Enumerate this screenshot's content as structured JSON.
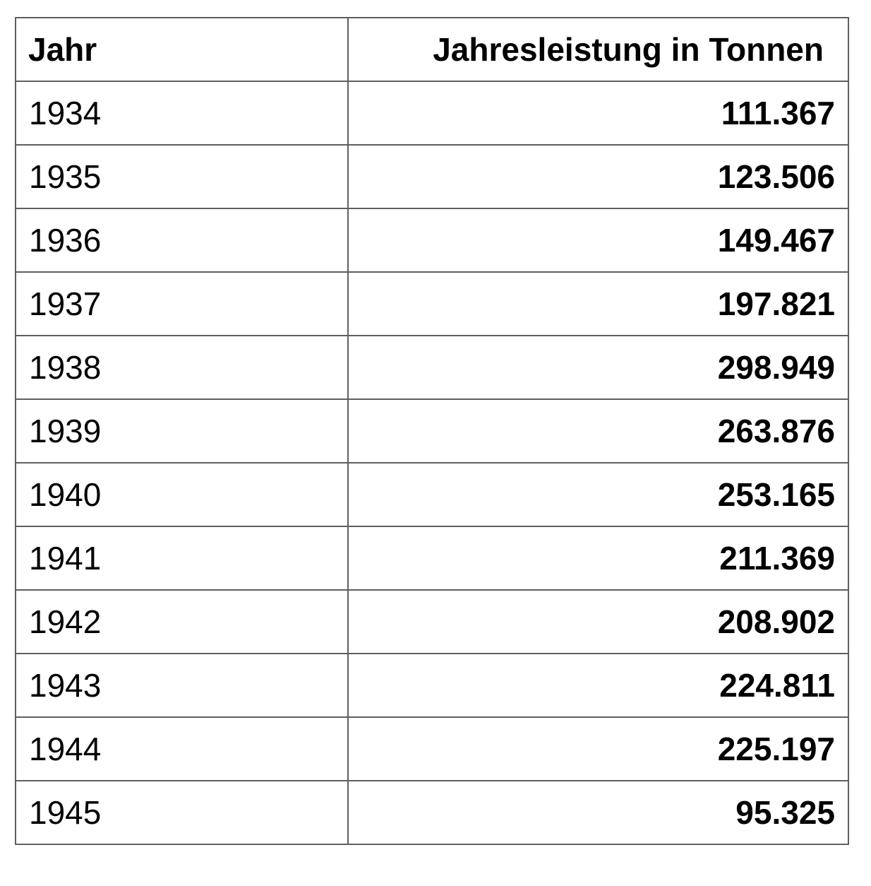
{
  "table": {
    "headers": {
      "year": "Jahr",
      "value": "Jahresleistung in Tonnen"
    },
    "rows": [
      {
        "year": "1934",
        "value": "111.367"
      },
      {
        "year": "1935",
        "value": "123.506"
      },
      {
        "year": "1936",
        "value": "149.467"
      },
      {
        "year": "1937",
        "value": "197.821"
      },
      {
        "year": "1938",
        "value": "298.949"
      },
      {
        "year": "1939",
        "value": "263.876"
      },
      {
        "year": "1940",
        "value": "253.165"
      },
      {
        "year": "1941",
        "value": "211.369"
      },
      {
        "year": "1942",
        "value": "208.902"
      },
      {
        "year": "1943",
        "value": "224.811"
      },
      {
        "year": "1944",
        "value": "225.197"
      },
      {
        "year": "1945",
        "value": "95.325"
      }
    ]
  },
  "colors": {
    "border": "#5f5f5f",
    "text": "#000000",
    "background": "#ffffff"
  }
}
